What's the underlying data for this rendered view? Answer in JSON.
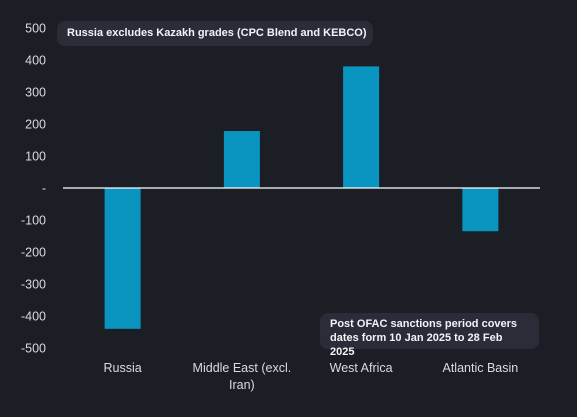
{
  "annotations": {
    "top": "Russia excludes Kazakh grades (CPC Blend and KEBCO)",
    "bottom": "Post OFAC sanctions period covers dates form 10 Jan 2025 to 28 Feb 2025"
  },
  "colors": {
    "bar": "#0a95c1",
    "background": "#1c1e26",
    "note_background": "#2a2d38",
    "zero_line": "#ffffff",
    "text": "#d9dbe1"
  },
  "chart_data": {
    "type": "bar",
    "categories": [
      "Russia",
      "Middle East (excl. Iran)",
      "West Africa",
      "Atlantic Basin"
    ],
    "category_label_lines": [
      [
        "Russia"
      ],
      [
        "Middle East (excl.",
        "Iran)"
      ],
      [
        "West Africa"
      ],
      [
        "Atlantic Basin"
      ]
    ],
    "values": [
      -440,
      178,
      380,
      -135
    ],
    "ylim": [
      -500,
      500
    ],
    "yticks": [
      500,
      400,
      300,
      200,
      100,
      0,
      -100,
      -200,
      -300,
      -400,
      -500
    ],
    "ytick_labels": [
      "500",
      "400",
      "300",
      "200",
      "100",
      "-",
      "-100",
      "-200",
      "-300",
      "-400",
      "-500"
    ],
    "grid": false,
    "legend": "none"
  }
}
